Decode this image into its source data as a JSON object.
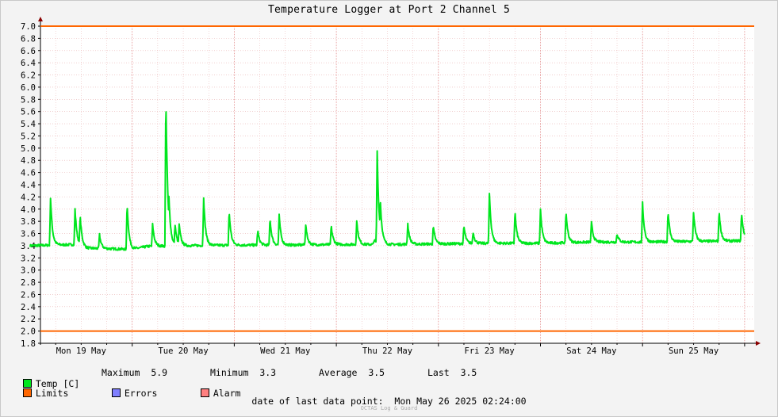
{
  "chart_data": {
    "type": "line",
    "title": "Temperature Logger at Port 2 Channel 5",
    "ylim": [
      1.8,
      7.0
    ],
    "y_ticks": [
      1.8,
      2.0,
      2.2,
      2.4,
      2.6,
      2.8,
      3.0,
      3.2,
      3.4,
      3.6,
      3.8,
      4.0,
      4.2,
      4.4,
      4.6,
      4.8,
      5.0,
      5.2,
      5.4,
      5.6,
      5.8,
      6.0,
      6.2,
      6.4,
      6.6,
      6.8,
      7.0
    ],
    "y_tick_labels": [
      "1.8",
      "2.0",
      "2.2",
      "2.4",
      "2.6",
      "2.8",
      "3.0",
      "3.2",
      "3.4",
      "3.6",
      "3.8",
      "4.0",
      "4.2",
      "4.4",
      "4.6",
      "4.8",
      "5.0",
      "5.2",
      "5.4",
      "5.6",
      "5.8",
      "6.0",
      "6.2",
      "6.4",
      "6.6",
      "6.8",
      "7.0"
    ],
    "x_axis": {
      "unit": "days",
      "range": [
        0,
        7
      ],
      "day_labels": [
        "Mon 19 May",
        "Tue 20 May",
        "Wed 21 May",
        "Thu 22 May",
        "Fri 23 May",
        "Sat 24 May",
        "Sun 25 May"
      ]
    },
    "grid": true,
    "series": [
      {
        "name": "Temp [C]",
        "color": "#00e61e",
        "baseline": [
          [
            0,
            3.4
          ],
          [
            0.45,
            3.42
          ],
          [
            0.55,
            3.36
          ],
          [
            1.0,
            3.34
          ],
          [
            1.15,
            3.39
          ],
          [
            1.5,
            3.4
          ],
          [
            2.0,
            3.41
          ],
          [
            2.5,
            3.41
          ],
          [
            3.0,
            3.42
          ],
          [
            3.5,
            3.42
          ],
          [
            4.0,
            3.43
          ],
          [
            4.5,
            3.44
          ],
          [
            5.0,
            3.44
          ],
          [
            5.5,
            3.46
          ],
          [
            6.0,
            3.46
          ],
          [
            6.5,
            3.47
          ],
          [
            6.95,
            3.48
          ],
          [
            7.0,
            3.5
          ]
        ],
        "spikes": [
          [
            0.2,
            4.18
          ],
          [
            0.44,
            4.0
          ],
          [
            0.49,
            3.9
          ],
          [
            0.68,
            3.58
          ],
          [
            0.95,
            4.1
          ],
          [
            1.2,
            3.75
          ],
          [
            1.33,
            5.87
          ],
          [
            1.36,
            4.2
          ],
          [
            1.42,
            3.75
          ],
          [
            1.46,
            3.76
          ],
          [
            1.7,
            4.2
          ],
          [
            1.95,
            3.97
          ],
          [
            2.23,
            3.65
          ],
          [
            2.35,
            3.86
          ],
          [
            2.44,
            3.9
          ],
          [
            2.7,
            3.75
          ],
          [
            2.95,
            3.73
          ],
          [
            3.2,
            3.8
          ],
          [
            3.37,
            3.5
          ],
          [
            3.4,
            4.96
          ],
          [
            3.43,
            4.2
          ],
          [
            3.7,
            3.76
          ],
          [
            3.95,
            3.72
          ],
          [
            4.25,
            3.73
          ],
          [
            4.34,
            3.62
          ],
          [
            4.5,
            4.25
          ],
          [
            4.75,
            3.97
          ],
          [
            5.0,
            4.0
          ],
          [
            5.25,
            3.97
          ],
          [
            5.5,
            3.78
          ],
          [
            5.75,
            3.6
          ],
          [
            6.0,
            4.1
          ],
          [
            6.25,
            3.98
          ],
          [
            6.5,
            3.95
          ],
          [
            6.75,
            3.98
          ],
          [
            6.97,
            3.95
          ]
        ]
      }
    ],
    "limits": {
      "name": "Limits",
      "color": "#ff6600",
      "values": [
        2.0,
        7.0
      ]
    },
    "legend": {
      "placement": "bottom-left",
      "temp_label": "Temp [C]",
      "maximum_label": "Maximum",
      "maximum_value": "5.9",
      "minimum_label": "Minimum",
      "minimum_value": "3.3",
      "average_label": "Average",
      "average_value": "3.5",
      "last_label": "Last",
      "last_value": "3.5",
      "limits_label": "Limits",
      "errors_label": "Errors",
      "alarm_label": "Alarm",
      "temp_color": "#00e61e",
      "limits_color": "#ff6600",
      "errors_color": "#7f7fff",
      "alarm_color": "#ff7f7f"
    },
    "last_data_point_label": "date of last data point:",
    "last_data_point_value": "Mon May 26 2025 02:24:00",
    "watermark": "OCTAS Log & Guard"
  }
}
